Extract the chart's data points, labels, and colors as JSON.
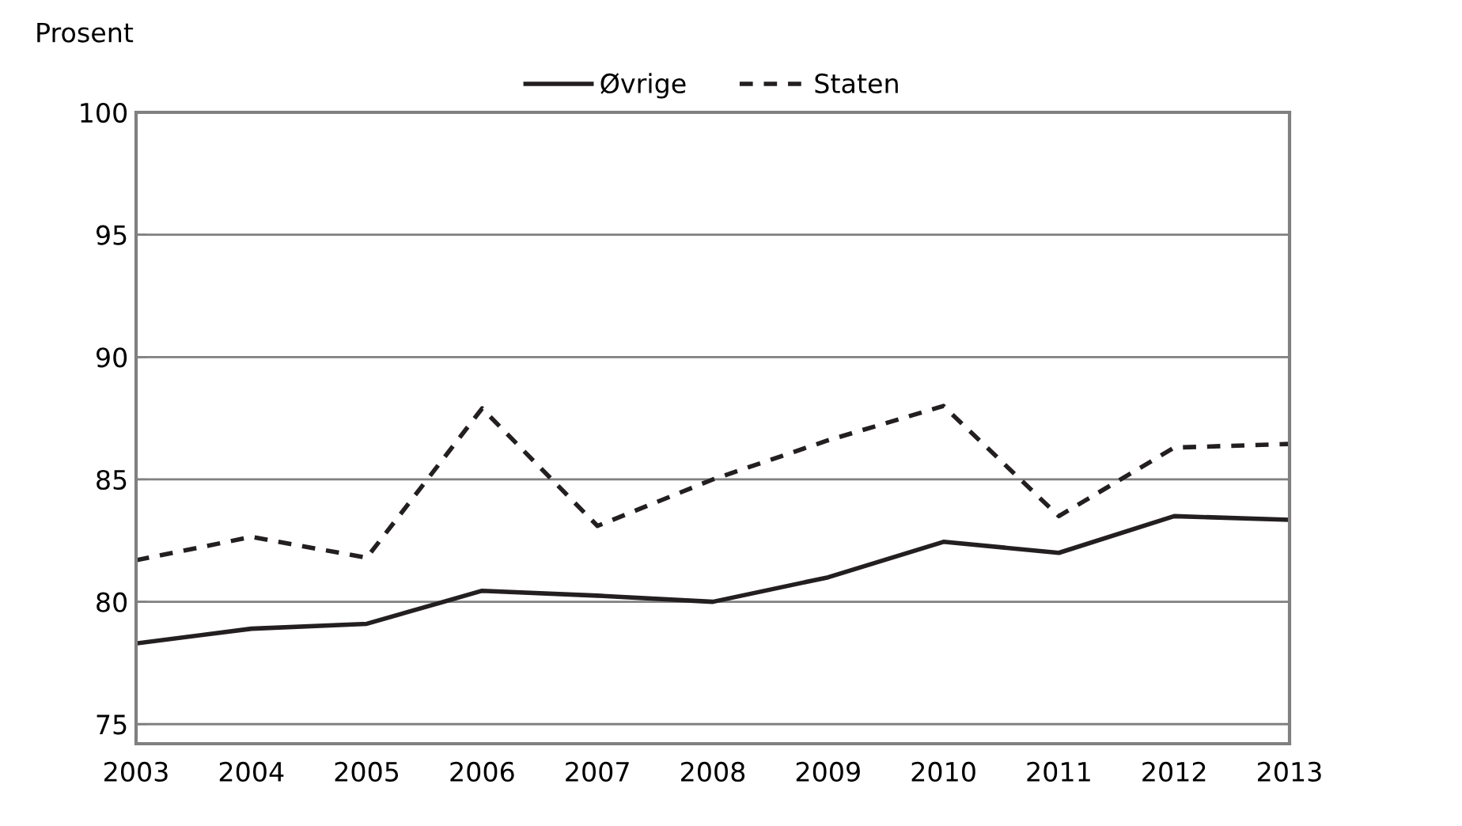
{
  "chart_data": {
    "type": "line",
    "ylabel": "Prosent",
    "x": [
      2003,
      2004,
      2005,
      2006,
      2007,
      2008,
      2009,
      2010,
      2011,
      2012,
      2013
    ],
    "series": [
      {
        "name": "Øvrige",
        "color": "#231f20",
        "line_style": "solid",
        "values": [
          78.3,
          78.9,
          79.1,
          80.45,
          80.25,
          80.0,
          81.0,
          82.45,
          82.0,
          83.5,
          83.35
        ]
      },
      {
        "name": "Staten",
        "color": "#231f20",
        "line_style": "dashed",
        "values": [
          81.7,
          82.65,
          81.8,
          87.9,
          83.1,
          85.0,
          86.6,
          88.0,
          83.5,
          86.3,
          86.45
        ]
      }
    ],
    "xlim": [
      2003,
      2013
    ],
    "xticks": [
      2003,
      2004,
      2005,
      2006,
      2007,
      2008,
      2009,
      2010,
      2011,
      2012,
      2013
    ],
    "ylim": [
      74.2,
      100
    ],
    "yticks": [
      75,
      80,
      85,
      90,
      95,
      100
    ],
    "grid": "y",
    "legend": "top",
    "marker": "none"
  }
}
